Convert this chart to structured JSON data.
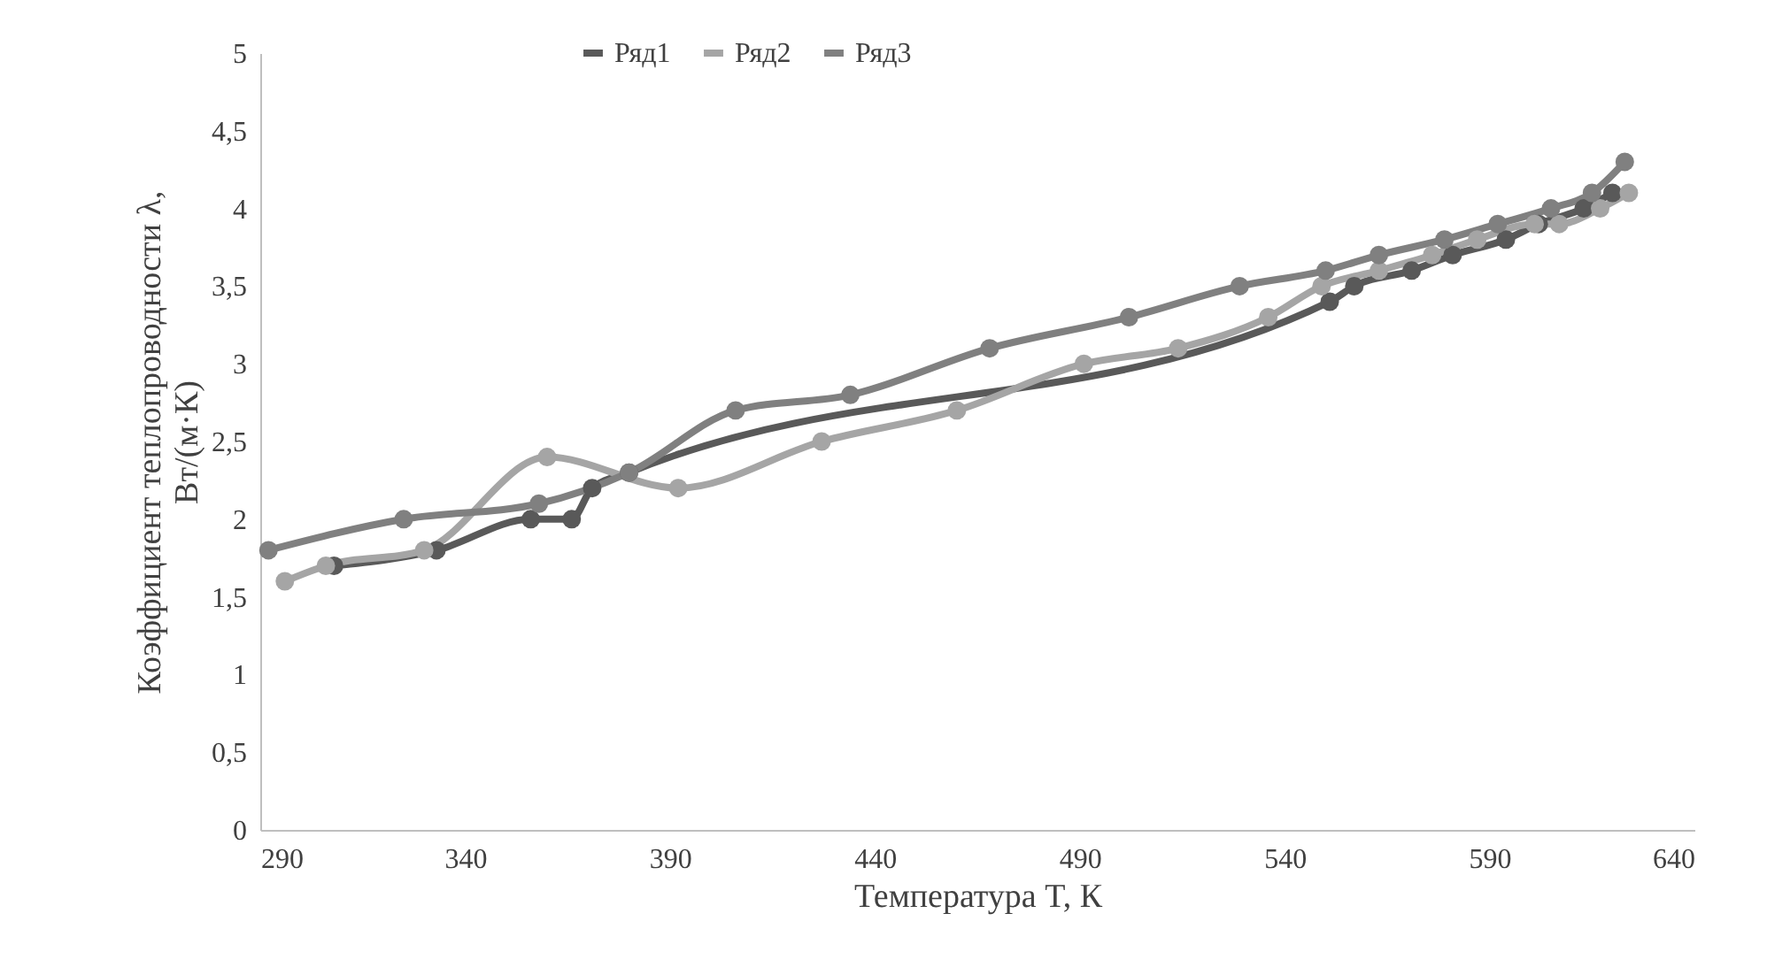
{
  "chart_data": {
    "type": "line",
    "xlabel": "Температура T, К",
    "ylabel": "Коэффициент теплопроводности λ,\nВт/(м·К)",
    "xlim": [
      290,
      640
    ],
    "xticks": [
      290,
      340,
      390,
      440,
      490,
      540,
      590,
      640
    ],
    "ylim": [
      0,
      5
    ],
    "yticks": [
      0,
      {
        "value": 0.5,
        "label": "0,5"
      },
      1,
      {
        "value": 1.5,
        "label": "1,5"
      },
      2,
      {
        "value": 2.5,
        "label": "2,5"
      },
      3,
      {
        "value": 3.5,
        "label": "3,5"
      },
      4,
      {
        "value": 4.5,
        "label": "4,5"
      },
      5
    ],
    "grid": false,
    "legend": "top",
    "marker": "circle",
    "line_style": "solid",
    "series": [
      {
        "name": "Ряд1",
        "color": "#595959",
        "x": [
          308,
          333,
          356,
          366,
          371,
          380,
          551,
          557,
          571,
          581,
          594,
          602,
          613,
          620
        ],
        "values": [
          1.7,
          1.8,
          2.0,
          2.0,
          2.2,
          2.3,
          3.4,
          3.5,
          3.6,
          3.7,
          3.8,
          3.9,
          4.0,
          4.1
        ]
      },
      {
        "name": "Ряд2",
        "color": "#a5a5a5",
        "x": [
          296,
          306,
          330,
          360,
          392,
          427,
          460,
          491,
          514,
          536,
          549,
          563,
          576,
          587,
          601,
          607,
          617,
          624
        ],
        "values": [
          1.6,
          1.7,
          1.8,
          2.4,
          2.2,
          2.5,
          2.7,
          3.0,
          3.1,
          3.3,
          3.5,
          3.6,
          3.7,
          3.8,
          3.9,
          3.9,
          4.0,
          4.1
        ]
      },
      {
        "name": "Ряд3",
        "color": "#808080",
        "x": [
          292,
          325,
          358,
          380,
          406,
          434,
          468,
          502,
          529,
          550,
          563,
          579,
          592,
          605,
          615,
          623
        ],
        "values": [
          1.8,
          2.0,
          2.1,
          2.3,
          2.7,
          2.8,
          3.1,
          3.3,
          3.5,
          3.6,
          3.7,
          3.8,
          3.9,
          4.0,
          4.1,
          4.3
        ]
      }
    ]
  }
}
